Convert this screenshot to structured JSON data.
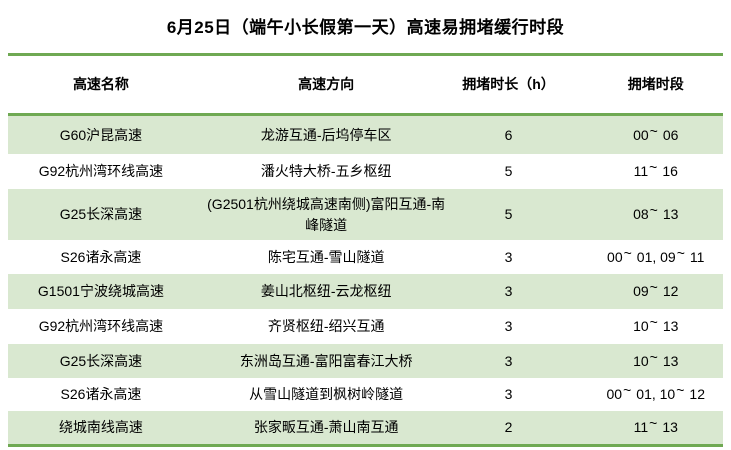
{
  "colors": {
    "accent_green": "#6fa953",
    "row_stripe_green": "#d9e8d0",
    "text": "#000000"
  },
  "chart_data": {
    "type": "table",
    "title": "6月25日（端午小长假第一天）高速易拥堵缓行时段",
    "columns": [
      "高速名称",
      "高速方向",
      "拥堵时长（h）",
      "拥堵时段"
    ],
    "rows": [
      {
        "name": "G60沪昆高速",
        "direction": "龙游互通-后坞停车区",
        "duration_h": 6,
        "period": "00~06"
      },
      {
        "name": "G92杭州湾环线高速",
        "direction": "潘火特大桥-五乡枢纽",
        "duration_h": 5,
        "period": "11~16"
      },
      {
        "name": "G25长深高速",
        "direction": "(G2501杭州绕城高速南侧)富阳互通-南峰隧道",
        "duration_h": 5,
        "period": "08~13"
      },
      {
        "name": "S26诸永高速",
        "direction": "陈宅互通-雪山隧道",
        "duration_h": 3,
        "period": "00~01, 09~11"
      },
      {
        "name": "G1501宁波绕城高速",
        "direction": "姜山北枢纽-云龙枢纽",
        "duration_h": 3,
        "period": "09~12"
      },
      {
        "name": "G92杭州湾环线高速",
        "direction": "齐贤枢纽-绍兴互通",
        "duration_h": 3,
        "period": "10~13"
      },
      {
        "name": "G25长深高速",
        "direction": "东洲岛互通-富阳富春江大桥",
        "duration_h": 3,
        "period": "10~13"
      },
      {
        "name": "S26诸永高速",
        "direction": "从雪山隧道到枫树岭隧道",
        "duration_h": 3,
        "period": "00~01, 10~12"
      },
      {
        "name": "绕城南线高速",
        "direction": "张家畈互通-萧山南互通",
        "duration_h": 2,
        "period": "11~13"
      }
    ],
    "layout": {
      "row_stripes": true,
      "stripe_rows": "odd",
      "gridlines": "horizontal-accent-only"
    }
  }
}
